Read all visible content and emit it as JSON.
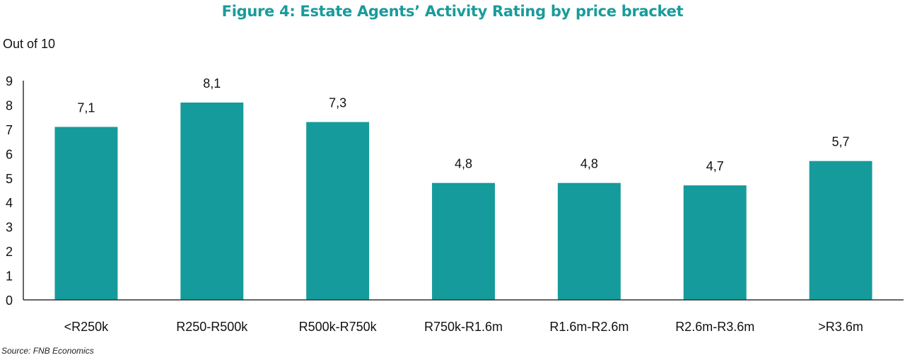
{
  "title": "Figure 4: Estate Agents’ Activity Rating by price bracket",
  "y_unit_label": "Out of 10",
  "source": "Source: FNB Economics",
  "colors": {
    "bar": "#159b9b",
    "title": "#1a9b9b",
    "axis": "#333333"
  },
  "chart_data": {
    "type": "bar",
    "title": "Figure 4: Estate Agents’ Activity Rating by price bracket",
    "xlabel": "",
    "ylabel": "Out of 10",
    "categories": [
      "<R250k",
      "R250-R500k",
      "R500k-R750k",
      "R750k-R1.6m",
      "R1.6m-R2.6m",
      "R2.6m-R3.6m",
      ">R3.6m"
    ],
    "values": [
      7.1,
      8.1,
      7.3,
      4.8,
      4.8,
      4.7,
      5.7
    ],
    "data_labels": [
      "7,1",
      "8,1",
      "7,3",
      "4,8",
      "4,8",
      "4,7",
      "5,7"
    ],
    "y_ticks": [
      0,
      1,
      2,
      3,
      4,
      5,
      6,
      7,
      8,
      9
    ],
    "ylim": [
      0,
      9
    ],
    "grid": false,
    "legend": "none"
  }
}
